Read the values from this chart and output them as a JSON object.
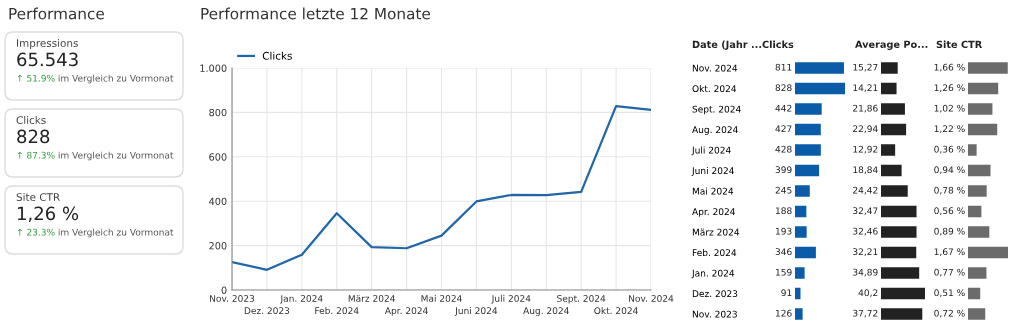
{
  "chart_data": [
    {
      "type": "other",
      "title": "Performance",
      "annotations": [
        "Impressions",
        "65.543",
        "↑ 51.9%",
        "im Vergleich zu Vormonat",
        "Clicks",
        "828",
        "↑ 87.3%",
        "im Vergleich zu Vormonat",
        "Site CTR",
        "1,26 %",
        "↑ 23.3%",
        "im Vergleich zu Vormonat"
      ]
    },
    {
      "type": "line",
      "title": "Performance letzte 12 Monate",
      "categories": [
        "Nov. 2023",
        "Dez. 2023",
        "Jan. 2024",
        "Feb. 2024",
        "März 2024",
        "Apr. 2024",
        "Mai 2024",
        "Juni 2024",
        "Juli 2024",
        "Aug. 2024",
        "Sept. 2024",
        "Okt. 2024",
        "Nov. 2024"
      ],
      "series": [
        {
          "name": "Clicks",
          "color": "#2166a8",
          "values": [
            126,
            91,
            159,
            346,
            193,
            188,
            245,
            399,
            428,
            427,
            442,
            828,
            811
          ]
        }
      ],
      "ylim": [
        0,
        1000
      ],
      "yticks": [
        0,
        200,
        400,
        600,
        800,
        {
          "value": 1000,
          "label": "1.000"
        }
      ],
      "grid": true,
      "legend": "top left"
    },
    {
      "type": "bar",
      "orientation": "horizontal",
      "title": "Clicks",
      "annotations": [
        "Date (Jahr ..."
      ],
      "tick_labels": "y",
      "color": "#0a5ca8",
      "categories": [
        "Nov. 2024",
        "Okt. 2024",
        "Sept. 2024",
        "Aug. 2024",
        "Juli 2024",
        "Juni 2024",
        "Mai 2024",
        "Apr. 2024",
        "März 2024",
        "Feb. 2024",
        "Jan. 2024",
        "Dez. 2023",
        "Nov. 2023"
      ],
      "values": [
        811,
        828,
        442,
        427,
        428,
        399,
        245,
        188,
        193,
        346,
        159,
        91,
        126
      ],
      "data_labels": true
    },
    {
      "type": "bar",
      "orientation": "horizontal",
      "title": "Average Po...",
      "tick_labels": false,
      "color": "#222222",
      "values": [
        15.27,
        14.21,
        21.86,
        22.94,
        12.92,
        18.84,
        24.42,
        32.47,
        32.46,
        32.21,
        34.89,
        40.2,
        37.72
      ],
      "value_labels": [
        "15,27",
        "14,21",
        "21,86",
        "22,94",
        "12,92",
        "18,84",
        "24,42",
        "32,47",
        "32,46",
        "32,21",
        "34,89",
        "40,2",
        "37,72"
      ]
    },
    {
      "type": "bar",
      "orientation": "horizontal",
      "title": "Site CTR",
      "tick_labels": false,
      "color": "#6b6b6b",
      "values": [
        1.66,
        1.26,
        1.02,
        1.22,
        0.36,
        0.94,
        0.78,
        0.56,
        0.89,
        1.67,
        0.77,
        0.51,
        0.72
      ],
      "value_labels": [
        "1,66 %",
        "1,26 %",
        "1,02 %",
        "1,22 %",
        "0,36 %",
        "0,94 %",
        "0,78 %",
        "0,56 %",
        "0,89 %",
        "1,67 %",
        "0,77 %",
        "0,51 %",
        "0,72 %"
      ]
    }
  ]
}
